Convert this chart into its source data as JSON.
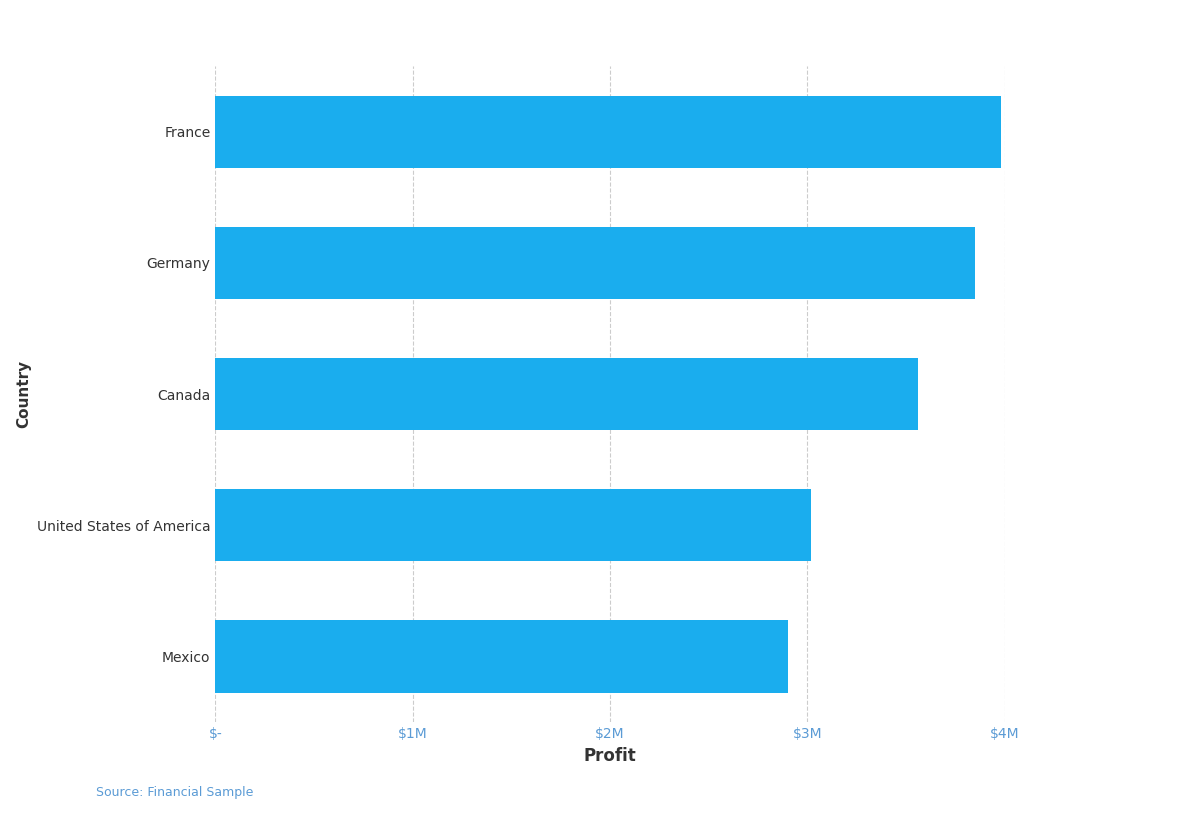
{
  "countries": [
    "Mexico",
    "United States of America",
    "Canada",
    "Germany",
    "France"
  ],
  "values": [
    2900000,
    3020000,
    3560000,
    3850000,
    3980000
  ],
  "bar_color": "#1AADEE",
  "xlabel": "Profit",
  "ylabel": "Country",
  "xlim": [
    0,
    4000000
  ],
  "xticks": [
    0,
    1000000,
    2000000,
    3000000,
    4000000
  ],
  "xticklabels": [
    "$-",
    "$1M",
    "$2M",
    "$3M",
    "$4M"
  ],
  "source_text": "Source: Financial Sample",
  "bg_color": "#FFFFFF",
  "plot_bg_color": "#FFFFFF",
  "grid_color": "#CCCCCC",
  "bar_height": 0.55,
  "ylabel_fontsize": 11,
  "xlabel_fontsize": 12,
  "tick_fontsize": 10,
  "ytick_color": "#5B9BD5",
  "xtick_color": "#5B9BD5",
  "xlabel_bold": true,
  "source_color": "#5B9BD5"
}
